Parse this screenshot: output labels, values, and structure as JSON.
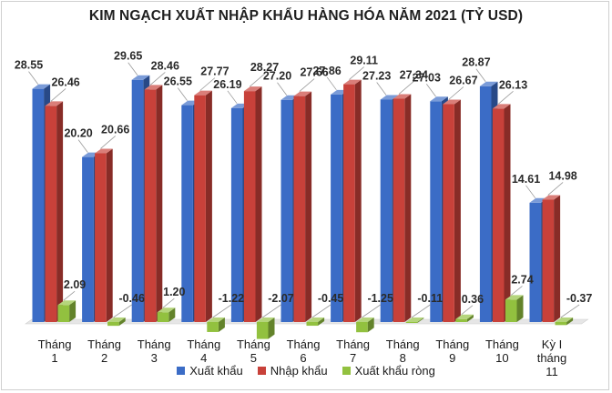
{
  "title": "KIM NGẠCH XUẤT NHẬP KHẨU HÀNG HÓA NĂM 2021 (TỶ USD)",
  "colors": {
    "export": "#3b6cc6",
    "import": "#c8413a",
    "net": "#92c13f"
  },
  "chart_data": {
    "type": "bar",
    "title": "KIM NGẠCH XUẤT NHẬP KHẨU HÀNG HÓA NĂM 2021 (TỶ USD)",
    "categories": [
      [
        "Tháng",
        "1"
      ],
      [
        "Tháng",
        "2"
      ],
      [
        "Tháng",
        "3"
      ],
      [
        "Tháng",
        "4"
      ],
      [
        "Tháng",
        "5"
      ],
      [
        "Tháng",
        "6"
      ],
      [
        "Tháng",
        "7"
      ],
      [
        "Tháng",
        "8"
      ],
      [
        "Tháng",
        "9"
      ],
      [
        "Tháng",
        "10"
      ],
      [
        "Kỳ I",
        "tháng",
        "11"
      ]
    ],
    "series": [
      {
        "name": "Xuất khẩu",
        "values": [
          28.55,
          20.2,
          29.65,
          26.55,
          26.19,
          27.2,
          27.86,
          27.23,
          27.03,
          28.87,
          14.61
        ],
        "labels": [
          "28.55",
          "20.20",
          "29.65",
          "26.55",
          "26.19",
          "27.20",
          "27.86",
          "27.23",
          "27.03",
          "28.87",
          "14.61"
        ]
      },
      {
        "name": "Nhập khẩu",
        "values": [
          26.46,
          20.66,
          28.46,
          27.77,
          28.27,
          27.66,
          29.11,
          27.34,
          26.67,
          26.13,
          14.98
        ],
        "labels": [
          "26.46",
          "20.66",
          "28.46",
          "27.77",
          "28.27",
          "27.66",
          "29.11",
          "27.34",
          "26.67",
          "26.13",
          "14.98"
        ]
      },
      {
        "name": "Xuất khẩu ròng",
        "values": [
          2.09,
          -0.46,
          1.2,
          -1.22,
          -2.07,
          -0.45,
          -1.25,
          -0.11,
          0.36,
          2.74,
          -0.37
        ],
        "labels": [
          "2.09",
          "-0.46",
          "1.20",
          "-1.22",
          "-2.07",
          "-0.45",
          "-1.25",
          "-0.11",
          "0.36",
          "2.74",
          "-0.37"
        ]
      }
    ],
    "style": "3d-columns",
    "grid": false,
    "legend": "bottom"
  }
}
